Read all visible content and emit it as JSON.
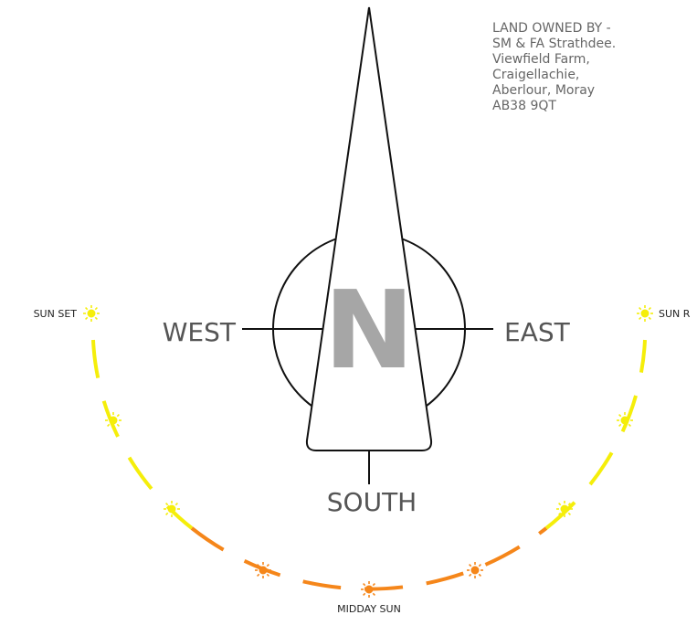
{
  "address": [
    "LAND OWNED BY -",
    "SM & FA Strathdee.",
    "Viewfield Farm,",
    "Craigellachie,",
    "Aberlour, Moray",
    "AB38 9QT"
  ],
  "compass": {
    "north": "N",
    "west": "WEST",
    "east": "EAST",
    "south": "SOUTH"
  },
  "sun": {
    "sunset": "SUN SET",
    "sunrise": "SUN R",
    "midday": "MIDDAY SUN"
  }
}
